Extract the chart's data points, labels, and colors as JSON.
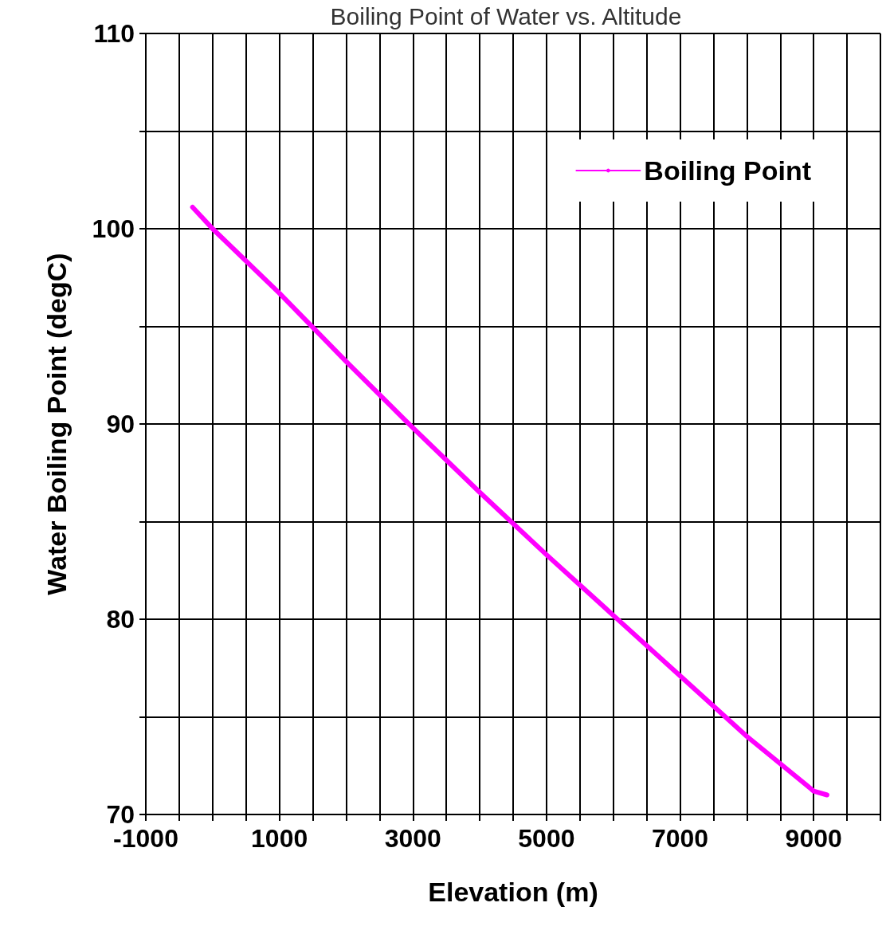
{
  "chart_data": {
    "type": "line",
    "title": "Boiling Point of Water vs. Altitude",
    "xlabel": "Elevation (m)",
    "ylabel": "Water Boiling Point (degC)",
    "x": [
      -300,
      0,
      1000,
      2000,
      3000,
      4000,
      5000,
      6000,
      7000,
      8000,
      9000,
      9200
    ],
    "series": [
      {
        "name": "Boiling Point",
        "color": "#ff00ff",
        "values": [
          101.1,
          100.0,
          96.7,
          93.2,
          89.8,
          86.5,
          83.3,
          80.2,
          77.1,
          74.0,
          71.2,
          71.0
        ]
      }
    ],
    "xlim": [
      -1000,
      10000
    ],
    "xticks": [
      -1000,
      {
        "value": -500,
        "label": null
      },
      {
        "value": 0,
        "label": null
      },
      {
        "value": 500,
        "label": null
      },
      1000,
      {
        "value": 1500,
        "label": null
      },
      {
        "value": 2000,
        "label": null
      },
      {
        "value": 2500,
        "label": null
      },
      3000,
      {
        "value": 3500,
        "label": null
      },
      {
        "value": 4000,
        "label": null
      },
      {
        "value": 4500,
        "label": null
      },
      5000,
      {
        "value": 5500,
        "label": null
      },
      {
        "value": 6000,
        "label": null
      },
      {
        "value": 6500,
        "label": null
      },
      7000,
      {
        "value": 7500,
        "label": null
      },
      {
        "value": 8000,
        "label": null
      },
      {
        "value": 8500,
        "label": null
      },
      9000,
      {
        "value": 9500,
        "label": null
      },
      {
        "value": 10000,
        "label": null
      }
    ],
    "ylim": [
      70,
      110
    ],
    "yticks": [
      70,
      {
        "value": 75,
        "label": null
      },
      80,
      {
        "value": 85,
        "label": null
      },
      90,
      {
        "value": 95,
        "label": null
      },
      100,
      {
        "value": 105,
        "label": null
      },
      110
    ],
    "grid": true,
    "legend": "top right",
    "marker": "none",
    "line_style": "solid"
  }
}
